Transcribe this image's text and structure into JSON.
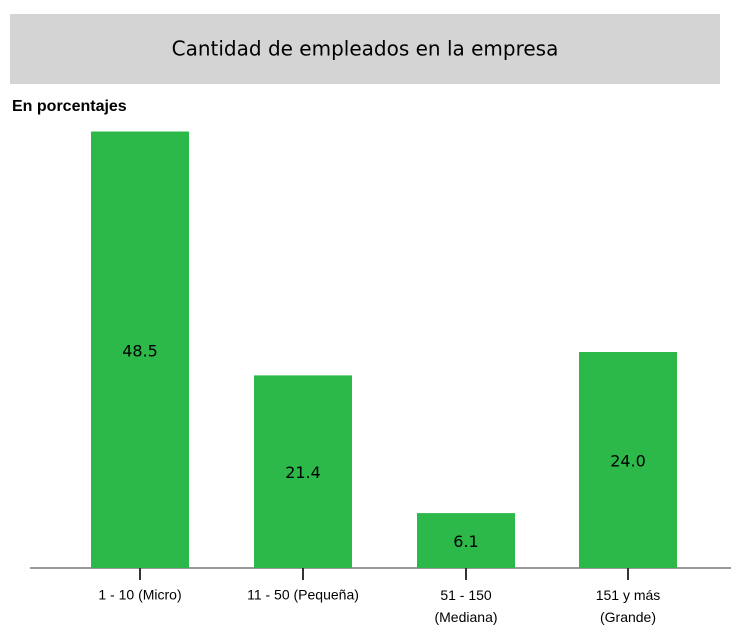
{
  "chart_data": {
    "type": "bar",
    "title": "Cantidad de empleados en la empresa",
    "subtitle": "En porcentajes",
    "categories": [
      "1 - 10  (Micro)",
      "11 - 50  (Pequeña)",
      "51 - 150\n(Mediana)",
      "151 y más\n(Grande)"
    ],
    "values": [
      48.5,
      21.4,
      6.1,
      24.0
    ],
    "value_labels": [
      "48.5",
      "21.4",
      "6.1",
      "24.0"
    ],
    "color": "#2db84a",
    "ylim": [
      0,
      50
    ]
  }
}
